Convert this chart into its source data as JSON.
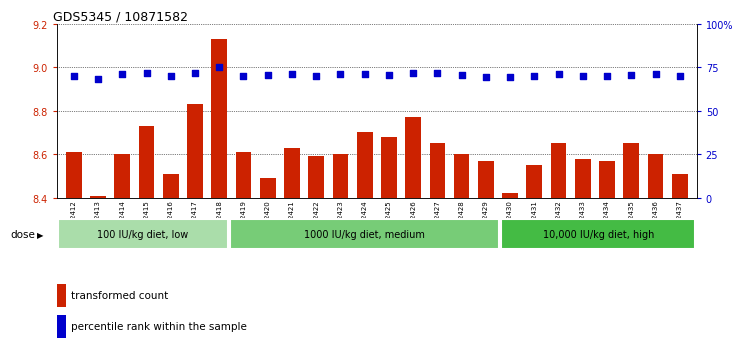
{
  "title": "GDS5345 / 10871582",
  "samples": [
    "GSM1502412",
    "GSM1502413",
    "GSM1502414",
    "GSM1502415",
    "GSM1502416",
    "GSM1502417",
    "GSM1502418",
    "GSM1502419",
    "GSM1502420",
    "GSM1502421",
    "GSM1502422",
    "GSM1502423",
    "GSM1502424",
    "GSM1502425",
    "GSM1502426",
    "GSM1502427",
    "GSM1502428",
    "GSM1502429",
    "GSM1502430",
    "GSM1502431",
    "GSM1502432",
    "GSM1502433",
    "GSM1502434",
    "GSM1502435",
    "GSM1502436",
    "GSM1502437"
  ],
  "bar_values": [
    8.61,
    8.41,
    8.6,
    8.73,
    8.51,
    8.83,
    9.13,
    8.61,
    8.49,
    8.63,
    8.59,
    8.6,
    8.7,
    8.68,
    8.77,
    8.65,
    8.6,
    8.57,
    8.42,
    8.55,
    8.65,
    8.58,
    8.57,
    8.65,
    8.6,
    8.51
  ],
  "percentile_values": [
    70.0,
    68.0,
    71.0,
    71.5,
    70.0,
    71.5,
    75.0,
    70.0,
    70.5,
    71.0,
    70.0,
    71.0,
    71.0,
    70.5,
    71.5,
    71.5,
    70.5,
    69.5,
    69.5,
    70.0,
    71.0,
    70.0,
    70.0,
    70.5,
    71.0,
    70.0
  ],
  "ylim_left": [
    8.4,
    9.2
  ],
  "ylim_right": [
    0,
    100
  ],
  "yticks_left": [
    8.4,
    8.6,
    8.8,
    9.0,
    9.2
  ],
  "yticks_right": [
    0,
    25,
    50,
    75,
    100
  ],
  "ytick_labels_right": [
    "0",
    "25",
    "50",
    "75",
    "100%"
  ],
  "bar_color": "#cc2200",
  "dot_color": "#0000cc",
  "groups": [
    {
      "label": "100 IU/kg diet, low",
      "start": 0,
      "end": 7,
      "color": "#aaddaa"
    },
    {
      "label": "1000 IU/kg diet, medium",
      "start": 7,
      "end": 18,
      "color": "#77cc77"
    },
    {
      "label": "10,000 IU/kg diet, high",
      "start": 18,
      "end": 26,
      "color": "#44bb44"
    }
  ],
  "dose_label": "dose",
  "legend_bar_label": "transformed count",
  "legend_dot_label": "percentile rank within the sample",
  "background_color": "#e8e8e8",
  "plot_bg": "#ffffff",
  "xticklabel_bg": "#d8d8d8"
}
